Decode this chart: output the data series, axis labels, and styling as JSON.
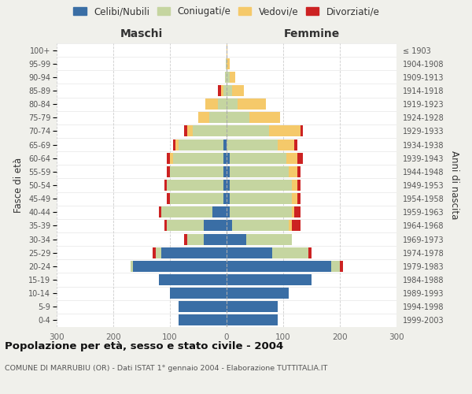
{
  "age_groups": [
    "0-4",
    "5-9",
    "10-14",
    "15-19",
    "20-24",
    "25-29",
    "30-34",
    "35-39",
    "40-44",
    "45-49",
    "50-54",
    "55-59",
    "60-64",
    "65-69",
    "70-74",
    "75-79",
    "80-84",
    "85-89",
    "90-94",
    "95-99",
    "100+"
  ],
  "birth_years": [
    "1999-2003",
    "1994-1998",
    "1989-1993",
    "1984-1988",
    "1979-1983",
    "1974-1978",
    "1969-1973",
    "1964-1968",
    "1959-1963",
    "1954-1958",
    "1949-1953",
    "1944-1948",
    "1939-1943",
    "1934-1938",
    "1929-1933",
    "1924-1928",
    "1919-1923",
    "1914-1918",
    "1909-1913",
    "1904-1908",
    "≤ 1903"
  ],
  "colors": {
    "celibi": "#3a6ea5",
    "coniugati": "#c5d5a0",
    "vedovi": "#f5c96a",
    "divorziati": "#cc2222"
  },
  "males": {
    "celibi": [
      85,
      85,
      100,
      120,
      165,
      115,
      40,
      40,
      25,
      5,
      5,
      5,
      5,
      5,
      0,
      0,
      0,
      0,
      0,
      0,
      0
    ],
    "coniugati": [
      0,
      0,
      0,
      0,
      5,
      10,
      30,
      65,
      90,
      95,
      100,
      95,
      90,
      80,
      60,
      30,
      15,
      5,
      3,
      1,
      0
    ],
    "vedovi": [
      0,
      0,
      0,
      0,
      0,
      0,
      0,
      0,
      0,
      0,
      0,
      0,
      5,
      5,
      10,
      20,
      22,
      5,
      0,
      0,
      0
    ],
    "divorziati": [
      0,
      0,
      0,
      0,
      0,
      5,
      5,
      5,
      5,
      5,
      5,
      5,
      5,
      5,
      5,
      0,
      0,
      5,
      0,
      0,
      0
    ]
  },
  "females": {
    "celibi": [
      90,
      90,
      110,
      150,
      185,
      80,
      35,
      10,
      5,
      5,
      5,
      5,
      5,
      0,
      0,
      0,
      0,
      0,
      0,
      0,
      0
    ],
    "coniugati": [
      0,
      0,
      0,
      0,
      15,
      65,
      80,
      100,
      110,
      110,
      110,
      105,
      100,
      90,
      75,
      40,
      20,
      10,
      5,
      0,
      0
    ],
    "vedovi": [
      0,
      0,
      0,
      0,
      0,
      0,
      0,
      5,
      5,
      10,
      10,
      15,
      20,
      30,
      55,
      55,
      50,
      20,
      10,
      5,
      2
    ],
    "divorziati": [
      0,
      0,
      0,
      0,
      5,
      5,
      0,
      15,
      10,
      5,
      5,
      5,
      10,
      5,
      5,
      0,
      0,
      0,
      0,
      0,
      0
    ]
  },
  "xlim": 300,
  "title": "Popolazione per età, sesso e stato civile - 2004",
  "subtitle": "COMUNE DI MARRUBIU (OR) - Dati ISTAT 1° gennaio 2004 - Elaborazione TUTTITALIA.IT",
  "ylabel_left": "Fasce di età",
  "ylabel_right": "Anni di nascita",
  "xlabel_left": "Maschi",
  "xlabel_right": "Femmine",
  "legend_labels": [
    "Celibi/Nubili",
    "Coniugati/e",
    "Vedovi/e",
    "Divorziati/e"
  ],
  "bg_color": "#f0f0eb",
  "plot_bg_color": "#ffffff"
}
